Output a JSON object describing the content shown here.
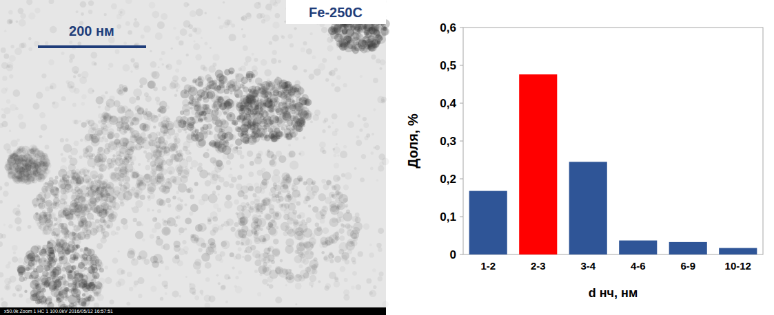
{
  "chart_data": {
    "type": "bar",
    "categories": [
      "1-2",
      "2-3",
      "3-4",
      "4-6",
      "6-9",
      "10-12"
    ],
    "values": [
      0.168,
      0.476,
      0.245,
      0.037,
      0.033,
      0.017
    ],
    "colors": [
      "#2f5597",
      "#ff0000",
      "#2f5597",
      "#2f5597",
      "#2f5597",
      "#2f5597"
    ],
    "x_label": "d нч, нм",
    "y_label": "Доля, %",
    "ylim": [
      0,
      0.6
    ],
    "yticks": [
      0,
      {
        "value": 0.1,
        "label": "0,1"
      },
      {
        "value": 0.2,
        "label": "0,2"
      },
      {
        "value": 0.3,
        "label": "0,3"
      },
      {
        "value": 0.4,
        "label": "0,4"
      },
      {
        "value": 0.5,
        "label": "0,5"
      },
      {
        "value": 0.6,
        "label": "0,6"
      }
    ],
    "grid": false
  },
  "image": {
    "scale_bar": "200 нм",
    "label": "Fe-250C",
    "caption": "x50.0k Zoom 1 HC 1 100.0kV 2016/05/12 16:57:51"
  }
}
